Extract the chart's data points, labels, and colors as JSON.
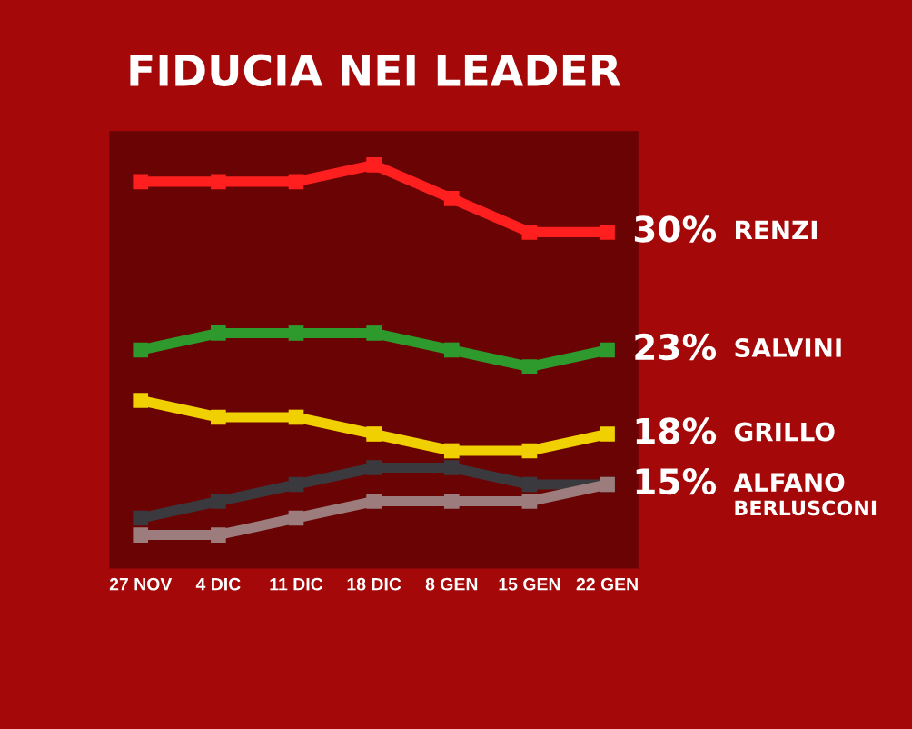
{
  "chart_data": {
    "type": "line",
    "title": "FIDUCIA NEI LEADER",
    "categories": [
      "27 NOV",
      "4 DIC",
      "11 DIC",
      "18 DIC",
      "8 GEN",
      "15 GEN",
      "22 GEN"
    ],
    "series": [
      {
        "name": "RENZI",
        "color": "#ff1f1f",
        "values": [
          33,
          33,
          33,
          34,
          32,
          30,
          30
        ],
        "value_labels": [
          null,
          null,
          null,
          null,
          null,
          null,
          "30%"
        ]
      },
      {
        "name": "SALVINI",
        "color": "#2e9a2e",
        "values": [
          23,
          24,
          24,
          24,
          23,
          22,
          23
        ],
        "value_labels": [
          null,
          null,
          null,
          null,
          null,
          null,
          "23%"
        ]
      },
      {
        "name": "GRILLO",
        "color": "#f0d000",
        "values": [
          20,
          19,
          19,
          18,
          17,
          17,
          18
        ],
        "value_labels": [
          null,
          null,
          null,
          null,
          null,
          null,
          "18%"
        ]
      },
      {
        "name": "ALFANO",
        "color": "#3a3a3e",
        "values": [
          13,
          14,
          15,
          16,
          16,
          15,
          15
        ],
        "value_labels": [
          null,
          null,
          null,
          null,
          null,
          null,
          "15%"
        ]
      },
      {
        "name": "BERLUSCONI",
        "color": "#9c7c7c",
        "values": [
          12,
          12,
          13,
          14,
          14,
          14,
          15
        ],
        "value_labels": [
          null,
          null,
          null,
          null,
          null,
          null,
          null
        ]
      }
    ],
    "ylim": [
      10,
      36
    ],
    "tick_labels": "x",
    "marker": "square",
    "line_style": "solid",
    "legend": false
  }
}
